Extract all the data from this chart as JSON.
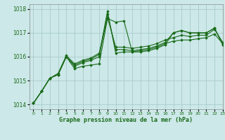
{
  "title": "Graphe pression niveau de la mer (hPa)",
  "bg_color": "#cce8e8",
  "grid_color": "#aacccc",
  "line_color": "#1a6b1a",
  "marker_color": "#1a6b1a",
  "xlim": [
    -0.5,
    23
  ],
  "ylim": [
    1013.8,
    1018.2
  ],
  "yticks": [
    1014,
    1015,
    1016,
    1017,
    1018
  ],
  "xticks": [
    0,
    1,
    2,
    3,
    4,
    5,
    6,
    7,
    8,
    9,
    10,
    11,
    12,
    13,
    14,
    15,
    16,
    17,
    18,
    19,
    20,
    21,
    22,
    23
  ],
  "series": [
    [
      1014.05,
      1014.55,
      1015.1,
      1015.25,
      1016.0,
      1015.5,
      1015.6,
      1015.65,
      1015.7,
      1017.6,
      1017.45,
      1017.5,
      1016.2,
      1016.2,
      1016.25,
      1016.35,
      1016.5,
      1017.0,
      1017.1,
      1017.0,
      1017.0,
      1017.0,
      1017.2,
      1016.5
    ],
    [
      1014.05,
      1014.55,
      1015.1,
      1015.25,
      1016.0,
      1015.6,
      1015.75,
      1015.85,
      1016.0,
      1017.8,
      1016.3,
      1016.3,
      1016.25,
      1016.3,
      1016.35,
      1016.45,
      1016.6,
      1017.0,
      1017.1,
      1017.0,
      1017.0,
      1017.0,
      1017.2,
      1016.5
    ],
    [
      1014.05,
      1014.55,
      1015.1,
      1015.25,
      1016.0,
      1015.65,
      1015.8,
      1015.9,
      1016.1,
      1017.9,
      1016.15,
      1016.2,
      1016.2,
      1016.25,
      1016.3,
      1016.4,
      1016.55,
      1016.65,
      1016.7,
      1016.7,
      1016.75,
      1016.8,
      1016.95,
      1016.55
    ],
    [
      1014.05,
      1014.55,
      1015.1,
      1015.3,
      1016.05,
      1015.7,
      1015.85,
      1015.95,
      1016.15,
      1017.65,
      1016.4,
      1016.4,
      1016.35,
      1016.4,
      1016.45,
      1016.55,
      1016.7,
      1016.8,
      1016.9,
      1016.85,
      1016.9,
      1016.9,
      1017.15,
      1016.6
    ]
  ]
}
